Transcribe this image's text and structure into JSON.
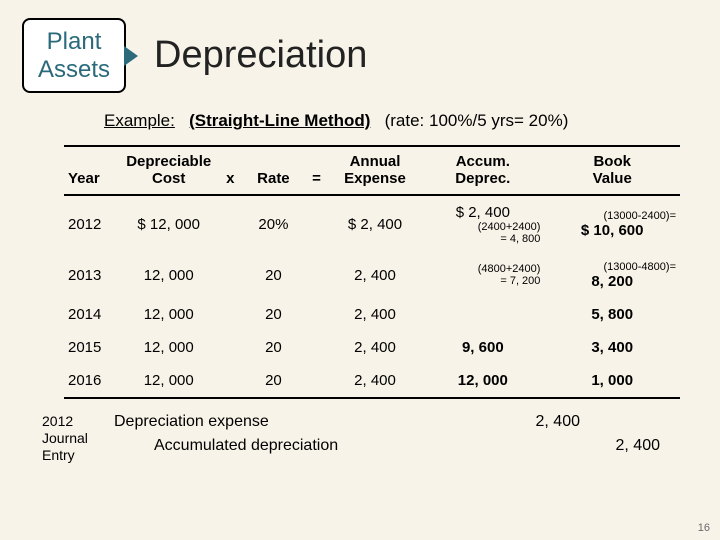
{
  "header": {
    "box_line1": "Plant",
    "box_line2": "Assets",
    "title": "Depreciation"
  },
  "example": {
    "prefix": "Example:",
    "method": "(Straight-Line Method)",
    "rate": "(rate: 100%/5 yrs= 20%)"
  },
  "table": {
    "headers": {
      "year": "Year",
      "cost_l1": "Depreciable",
      "cost_l2": "Cost",
      "x": "x",
      "rate": "Rate",
      "eq": "=",
      "exp_l1": "Annual",
      "exp_l2": "Expense",
      "acc_l1": "Accum.",
      "acc_l2": "Deprec.",
      "book_l1": "Book",
      "book_l2": "Value"
    },
    "rows": [
      {
        "year": "2012",
        "cost": "$ 12, 000",
        "rate": "20%",
        "exp": "$ 2, 400",
        "acc_main": "$ 2, 400",
        "acc_annot": "(2400+2400)",
        "acc_annot2": "= 4, 800",
        "book_annot": "(13000-2400)=",
        "book_main": "$ 10, 600"
      },
      {
        "year": "2013",
        "cost": "12, 000",
        "rate": "20",
        "exp": "2, 400",
        "acc_main": "",
        "acc_annot": "(4800+2400)",
        "acc_annot2": "= 7, 200",
        "book_annot": "(13000-4800)=",
        "book_main": "8, 200"
      },
      {
        "year": "2014",
        "cost": "12, 000",
        "rate": "20",
        "exp": "2, 400",
        "acc_main": "",
        "book_main": "5, 800"
      },
      {
        "year": "2015",
        "cost": "12, 000",
        "rate": "20",
        "exp": "2, 400",
        "acc_main": "9, 600",
        "book_main": "3, 400"
      },
      {
        "year": "2016",
        "cost": "12, 000",
        "rate": "20",
        "exp": "2, 400",
        "acc_main": "12, 000",
        "book_main": "1, 000"
      }
    ]
  },
  "journal": {
    "label_l1": "2012",
    "label_l2": "Journal",
    "label_l3": "Entry",
    "line1": "Depreciation expense",
    "line2": "Accumulated depreciation",
    "amt1": "2, 400",
    "amt2": "2, 400"
  },
  "page_number": "16",
  "colors": {
    "bg": "#f7f3e8",
    "teal": "#2a6a7a",
    "text": "#000000"
  }
}
